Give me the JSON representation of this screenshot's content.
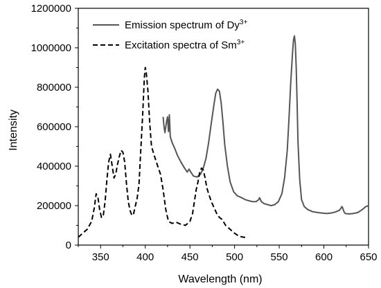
{
  "chart_data": {
    "type": "line",
    "xlabel": "Wavelength (nm)",
    "ylabel": "Intensity",
    "xlim": [
      325,
      650
    ],
    "ylim": [
      0,
      1200000
    ],
    "x_ticks": [
      "350",
      "400",
      "450",
      "500",
      "550",
      "600",
      "650"
    ],
    "x_tick_values": [
      350,
      400,
      450,
      500,
      550,
      600,
      650
    ],
    "y_ticks": [
      "0",
      "200000",
      "400000",
      "600000",
      "800000",
      "1000000",
      "1200000"
    ],
    "y_tick_values": [
      0,
      200000,
      400000,
      600000,
      800000,
      1000000,
      1200000
    ],
    "grid": false,
    "legend_position": "top",
    "series": [
      {
        "name_main": "Emission spectrum of Dy",
        "name_sup": "3+",
        "style": "solid",
        "color": "#555555",
        "x": [
          420,
          421,
          422,
          424,
          425,
          426,
          427,
          428,
          430,
          433,
          436,
          440,
          444,
          447,
          449,
          451,
          454,
          458,
          462,
          465,
          468,
          471,
          474,
          477,
          479,
          481,
          483,
          485,
          487,
          489,
          492,
          495,
          499,
          503,
          508,
          512,
          516,
          520,
          524,
          527,
          528,
          530,
          533,
          537,
          541,
          545,
          549,
          553,
          556,
          559,
          561,
          563,
          565,
          566,
          567,
          568,
          569,
          570,
          571,
          573,
          575,
          578,
          582,
          587,
          593,
          598,
          603,
          608,
          613,
          617,
          619,
          620,
          621,
          622,
          623,
          624,
          628,
          633,
          638,
          643,
          647,
          650
        ],
        "y": [
          650000,
          600000,
          570000,
          630000,
          650000,
          575000,
          660000,
          550000,
          520000,
          490000,
          455000,
          420000,
          390000,
          370000,
          385000,
          370000,
          350000,
          345000,
          360000,
          390000,
          440000,
          520000,
          620000,
          715000,
          770000,
          790000,
          780000,
          720000,
          620000,
          510000,
          400000,
          320000,
          270000,
          250000,
          240000,
          230000,
          225000,
          220000,
          220000,
          230000,
          240000,
          220000,
          210000,
          205000,
          200000,
          205000,
          220000,
          260000,
          340000,
          480000,
          650000,
          830000,
          980000,
          1040000,
          1060000,
          1020000,
          900000,
          720000,
          520000,
          330000,
          230000,
          195000,
          180000,
          170000,
          165000,
          162000,
          160000,
          162000,
          168000,
          175000,
          185000,
          195000,
          190000,
          175000,
          165000,
          160000,
          158000,
          160000,
          165000,
          180000,
          195000,
          200000
        ]
      },
      {
        "name_main": "Excitation spectra of Sm",
        "name_sup": "3+",
        "style": "dashed",
        "color": "#000000",
        "x": [
          325,
          330,
          335,
          340,
          343,
          345,
          347,
          349,
          351,
          353,
          355,
          357,
          359,
          361,
          363,
          365,
          367,
          369,
          371,
          373,
          375,
          377,
          379,
          381,
          383,
          385,
          387,
          389,
          391,
          393,
          395,
          397,
          399,
          400,
          401,
          403,
          405,
          407,
          409,
          411,
          414,
          417,
          420,
          423,
          426,
          430,
          435,
          440,
          445,
          450,
          453,
          455,
          457,
          459,
          461,
          463,
          465,
          467,
          469,
          471,
          474,
          477,
          480,
          483,
          486,
          490,
          495,
          500,
          505,
          510,
          515
        ],
        "y": [
          40000,
          60000,
          80000,
          120000,
          190000,
          260000,
          240000,
          180000,
          140000,
          150000,
          220000,
          330000,
          420000,
          460000,
          400000,
          340000,
          360000,
          410000,
          450000,
          480000,
          470000,
          420000,
          310000,
          220000,
          175000,
          150000,
          160000,
          200000,
          240000,
          310000,
          480000,
          650000,
          850000,
          900000,
          880000,
          780000,
          620000,
          500000,
          470000,
          440000,
          400000,
          360000,
          280000,
          180000,
          120000,
          110000,
          115000,
          105000,
          100000,
          120000,
          160000,
          220000,
          280000,
          320000,
          370000,
          390000,
          380000,
          340000,
          290000,
          260000,
          220000,
          190000,
          160000,
          140000,
          130000,
          100000,
          80000,
          60000,
          45000,
          40000,
          38000
        ]
      }
    ]
  }
}
